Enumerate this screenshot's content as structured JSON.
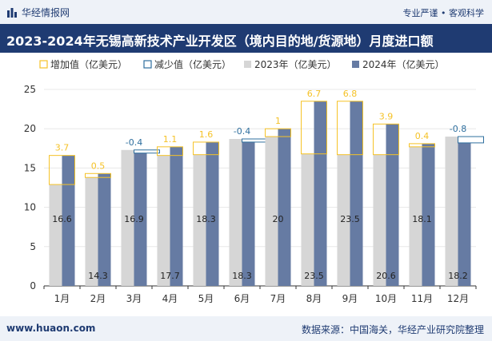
{
  "header": {
    "brand": "华经情报网",
    "tagline": "专业严谨 • 客观科学",
    "title": "2023-2024年无锡高新技术产业开发区（境内目的地/货源地）月度进口额"
  },
  "footer": {
    "url": "www.huaon.com",
    "source": "数据来源：中国海关，华经产业研究院整理"
  },
  "colors": {
    "increase": "#f5c227",
    "decrease": "#2f6f9e",
    "bar2023": "#d6d6d6",
    "bar2024": "#667ba3",
    "header_bg": "#1f3b72",
    "band_bg": "#eef2f8"
  },
  "chart_data": {
    "type": "bar",
    "legend": [
      "增加值（亿美元）",
      "减少值（亿美元）",
      "2023年（亿美元）",
      "2024年（亿美元）"
    ],
    "categories": [
      "1月",
      "2月",
      "3月",
      "4月",
      "5月",
      "6月",
      "7月",
      "8月",
      "9月",
      "10月",
      "11月",
      "12月"
    ],
    "series": [
      {
        "name": "2023年（亿美元）",
        "values": [
          12.9,
          13.8,
          17.3,
          16.6,
          16.7,
          18.7,
          19.0,
          16.8,
          16.7,
          16.7,
          17.7,
          19.0
        ]
      },
      {
        "name": "2024年（亿美元）",
        "values": [
          16.6,
          14.3,
          16.9,
          17.7,
          18.3,
          18.3,
          20,
          23.5,
          23.5,
          20.6,
          18.1,
          18.2
        ]
      }
    ],
    "changes": [
      3.7,
      0.5,
      -0.4,
      1.1,
      1.6,
      -0.4,
      1,
      6.7,
      6.8,
      3.9,
      0.4,
      -0.8
    ],
    "change_labels": [
      "3.7",
      "0.5",
      "-0.4",
      "1.1",
      "1.6",
      "-0.4",
      "1",
      "6.7",
      "6.8",
      "3.9",
      "0.4",
      "-0.8"
    ],
    "value_labels_2024": [
      "16.6",
      "14.3",
      "16.9",
      "17.7",
      "18.3",
      "18.3",
      "20",
      "23.5",
      "23.5",
      "20.6",
      "18.1",
      "18.2"
    ],
    "y_ticks": [
      0,
      5,
      10,
      15,
      20,
      25
    ],
    "ylim": [
      0,
      25
    ],
    "legend_position": "top-left"
  }
}
